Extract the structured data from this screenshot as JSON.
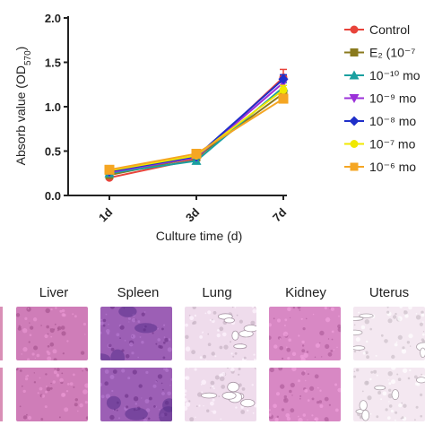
{
  "chart_data": {
    "type": "line",
    "categories": [
      "1d",
      "3d",
      "7d"
    ],
    "xlabel": "Culture time (d)",
    "ylabel": "Absorb value (OD570)",
    "ylabel_main": "Absorb value (OD",
    "ylabel_sub": "570",
    "ylabel_close": ")",
    "ylim": [
      0,
      2.0
    ],
    "yticks": [
      "0.0",
      "0.5",
      "1.0",
      "1.5",
      "2.0"
    ],
    "legend_position": "right",
    "series": [
      {
        "name": "Control",
        "legend_label": "Control",
        "color": "#e8433a",
        "marker": "circle",
        "values": [
          0.2,
          0.41,
          1.33
        ],
        "err": [
          0.02,
          0.02,
          0.09
        ]
      },
      {
        "name": "E₂ (10⁻⁷",
        "legend_label": "E₂ (10⁻⁷",
        "color": "#8a7a1e",
        "marker": "square",
        "values": [
          0.23,
          0.43,
          1.15
        ],
        "err": [
          0.02,
          0.02,
          0.05
        ]
      },
      {
        "name": "10⁻¹⁰ mo",
        "legend_label": "10⁻¹⁰ mo",
        "color": "#1aa0a0",
        "marker": "triangle-up",
        "values": [
          0.25,
          0.39,
          1.22
        ],
        "err": [
          0.02,
          0.02,
          0.05
        ]
      },
      {
        "name": "10⁻⁹ mo",
        "legend_label": "10⁻⁹ mo",
        "color": "#9b30d9",
        "marker": "triangle-down",
        "values": [
          0.26,
          0.43,
          1.27
        ],
        "err": [
          0.02,
          0.02,
          0.05
        ]
      },
      {
        "name": "10⁻⁸ mo",
        "legend_label": "10⁻⁸ mo",
        "color": "#1f2fc9",
        "marker": "diamond",
        "values": [
          0.27,
          0.44,
          1.31
        ],
        "err": [
          0.02,
          0.02,
          0.05
        ]
      },
      {
        "name": "10⁻⁷ mo",
        "legend_label": "10⁻⁷ mo",
        "color": "#f0e800",
        "marker": "circle",
        "values": [
          0.28,
          0.45,
          1.19
        ],
        "err": [
          0.02,
          0.02,
          0.05
        ]
      },
      {
        "name": "10⁻⁶ mo",
        "legend_label": "10⁻⁶ mo",
        "color": "#f5a623",
        "marker": "square",
        "values": [
          0.29,
          0.47,
          1.09
        ],
        "err": [
          0.02,
          0.02,
          0.05
        ]
      }
    ]
  },
  "histology": {
    "titles": [
      "Liver",
      "Spleen",
      "Lung",
      "Kidney",
      "Uterus"
    ],
    "tile_colors": {
      "liver": "#cf7db8",
      "spleen": "#9c5fb5",
      "lung": "#efdcec",
      "kidney": "#d888c4",
      "uterus": "#f4e8f1"
    }
  }
}
